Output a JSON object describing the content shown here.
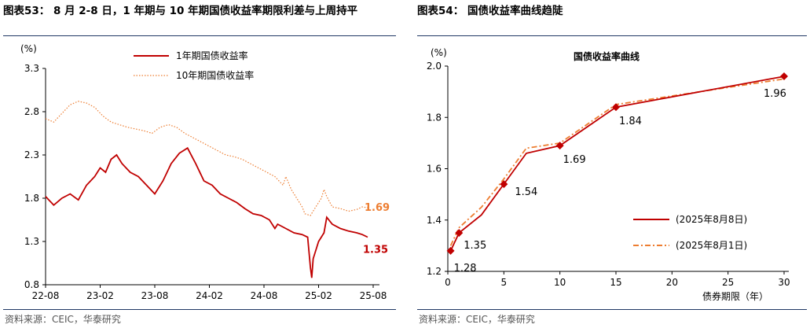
{
  "left": {
    "title": "图表53：  8 月 2-8 日，1 年期与 10 年期国债收益率期限利差与上周持平",
    "source": "资料来源：CEIC，华泰研究",
    "colors": {
      "y1": "#c00000",
      "y10": "#ed7d31"
    },
    "chart_data": {
      "type": "line",
      "ylabel": "(%)",
      "ylim": [
        0.8,
        3.3
      ],
      "yticks": [
        "3.3",
        "2.8",
        "2.3",
        "1.8",
        "1.3",
        "0.8"
      ],
      "xticks": [
        "22-08",
        "23-02",
        "23-08",
        "24-02",
        "24-08",
        "25-02",
        "25-08"
      ],
      "series": [
        {
          "name": "1年期国债收益率",
          "end_label": "1.35",
          "points": [
            [
              0,
              1.82
            ],
            [
              3,
              1.72
            ],
            [
              6,
              1.8
            ],
            [
              9,
              1.85
            ],
            [
              12,
              1.78
            ],
            [
              15,
              1.95
            ],
            [
              18,
              2.05
            ],
            [
              20,
              2.15
            ],
            [
              22,
              2.1
            ],
            [
              24,
              2.25
            ],
            [
              26,
              2.3
            ],
            [
              28,
              2.2
            ],
            [
              31,
              2.1
            ],
            [
              34,
              2.05
            ],
            [
              37,
              1.95
            ],
            [
              40,
              1.85
            ],
            [
              43,
              2.0
            ],
            [
              46,
              2.2
            ],
            [
              49,
              2.32
            ],
            [
              52,
              2.38
            ],
            [
              55,
              2.2
            ],
            [
              58,
              2.0
            ],
            [
              61,
              1.95
            ],
            [
              64,
              1.85
            ],
            [
              67,
              1.8
            ],
            [
              70,
              1.75
            ],
            [
              73,
              1.68
            ],
            [
              76,
              1.62
            ],
            [
              79,
              1.6
            ],
            [
              82,
              1.55
            ],
            [
              84,
              1.45
            ],
            [
              85,
              1.5
            ],
            [
              88,
              1.45
            ],
            [
              91,
              1.4
            ],
            [
              94,
              1.38
            ],
            [
              96,
              1.35
            ],
            [
              97,
              1.0
            ],
            [
              97.5,
              0.88
            ],
            [
              98,
              1.1
            ],
            [
              100,
              1.3
            ],
            [
              102,
              1.4
            ],
            [
              103,
              1.58
            ],
            [
              105,
              1.5
            ],
            [
              108,
              1.45
            ],
            [
              111,
              1.42
            ],
            [
              114,
              1.4
            ],
            [
              116,
              1.38
            ],
            [
              118,
              1.35
            ]
          ]
        },
        {
          "name": "10年期国债收益率",
          "end_label": "1.69",
          "points": [
            [
              0,
              2.72
            ],
            [
              3,
              2.68
            ],
            [
              6,
              2.78
            ],
            [
              9,
              2.88
            ],
            [
              12,
              2.92
            ],
            [
              15,
              2.9
            ],
            [
              18,
              2.85
            ],
            [
              21,
              2.75
            ],
            [
              24,
              2.68
            ],
            [
              27,
              2.65
            ],
            [
              30,
              2.62
            ],
            [
              33,
              2.6
            ],
            [
              36,
              2.58
            ],
            [
              39,
              2.55
            ],
            [
              42,
              2.62
            ],
            [
              45,
              2.65
            ],
            [
              48,
              2.62
            ],
            [
              51,
              2.55
            ],
            [
              54,
              2.5
            ],
            [
              57,
              2.45
            ],
            [
              60,
              2.4
            ],
            [
              63,
              2.35
            ],
            [
              66,
              2.3
            ],
            [
              69,
              2.28
            ],
            [
              72,
              2.25
            ],
            [
              75,
              2.2
            ],
            [
              78,
              2.15
            ],
            [
              81,
              2.1
            ],
            [
              84,
              2.05
            ],
            [
              87,
              1.95
            ],
            [
              88,
              2.05
            ],
            [
              90,
              1.9
            ],
            [
              92,
              1.8
            ],
            [
              94,
              1.7
            ],
            [
              95,
              1.62
            ],
            [
              97,
              1.6
            ],
            [
              99,
              1.7
            ],
            [
              101,
              1.8
            ],
            [
              102,
              1.9
            ],
            [
              103,
              1.82
            ],
            [
              105,
              1.7
            ],
            [
              108,
              1.68
            ],
            [
              111,
              1.65
            ],
            [
              114,
              1.67
            ],
            [
              116,
              1.7
            ],
            [
              118,
              1.69
            ]
          ]
        }
      ]
    }
  },
  "right": {
    "title": "图表54：  国债收益率曲线趋陡",
    "source": "资料来源：CEIC，华泰研究",
    "colors": {
      "aug8": "#c00000",
      "aug1": "#ed7d31"
    },
    "chart_data": {
      "type": "line",
      "title": "国债收益率曲线",
      "ylabel": "(%)",
      "xlabel": "债券期限（年）",
      "xlim": [
        0,
        30
      ],
      "ylim": [
        1.2,
        2.0
      ],
      "yticks": [
        "2.0",
        "1.8",
        "1.6",
        "1.4",
        "1.2"
      ],
      "xticks": [
        "0",
        "5",
        "10",
        "15",
        "20",
        "25",
        "30"
      ],
      "series": [
        {
          "name": "(2025年8月8日)",
          "x": [
            0.25,
            1,
            3,
            5,
            7,
            10,
            15,
            30
          ],
          "y": [
            1.28,
            1.35,
            1.42,
            1.54,
            1.66,
            1.69,
            1.84,
            1.96
          ],
          "markers": [
            0.25,
            1,
            5,
            10,
            15,
            30
          ],
          "labels": [
            "1.28",
            "1.35",
            "1.54",
            "1.69",
            "1.84",
            "1.96"
          ]
        },
        {
          "name": "(2025年8月1日)",
          "x": [
            0.25,
            1,
            3,
            5,
            7,
            10,
            15,
            30
          ],
          "y": [
            1.3,
            1.37,
            1.45,
            1.56,
            1.68,
            1.7,
            1.85,
            1.95
          ]
        }
      ]
    }
  }
}
